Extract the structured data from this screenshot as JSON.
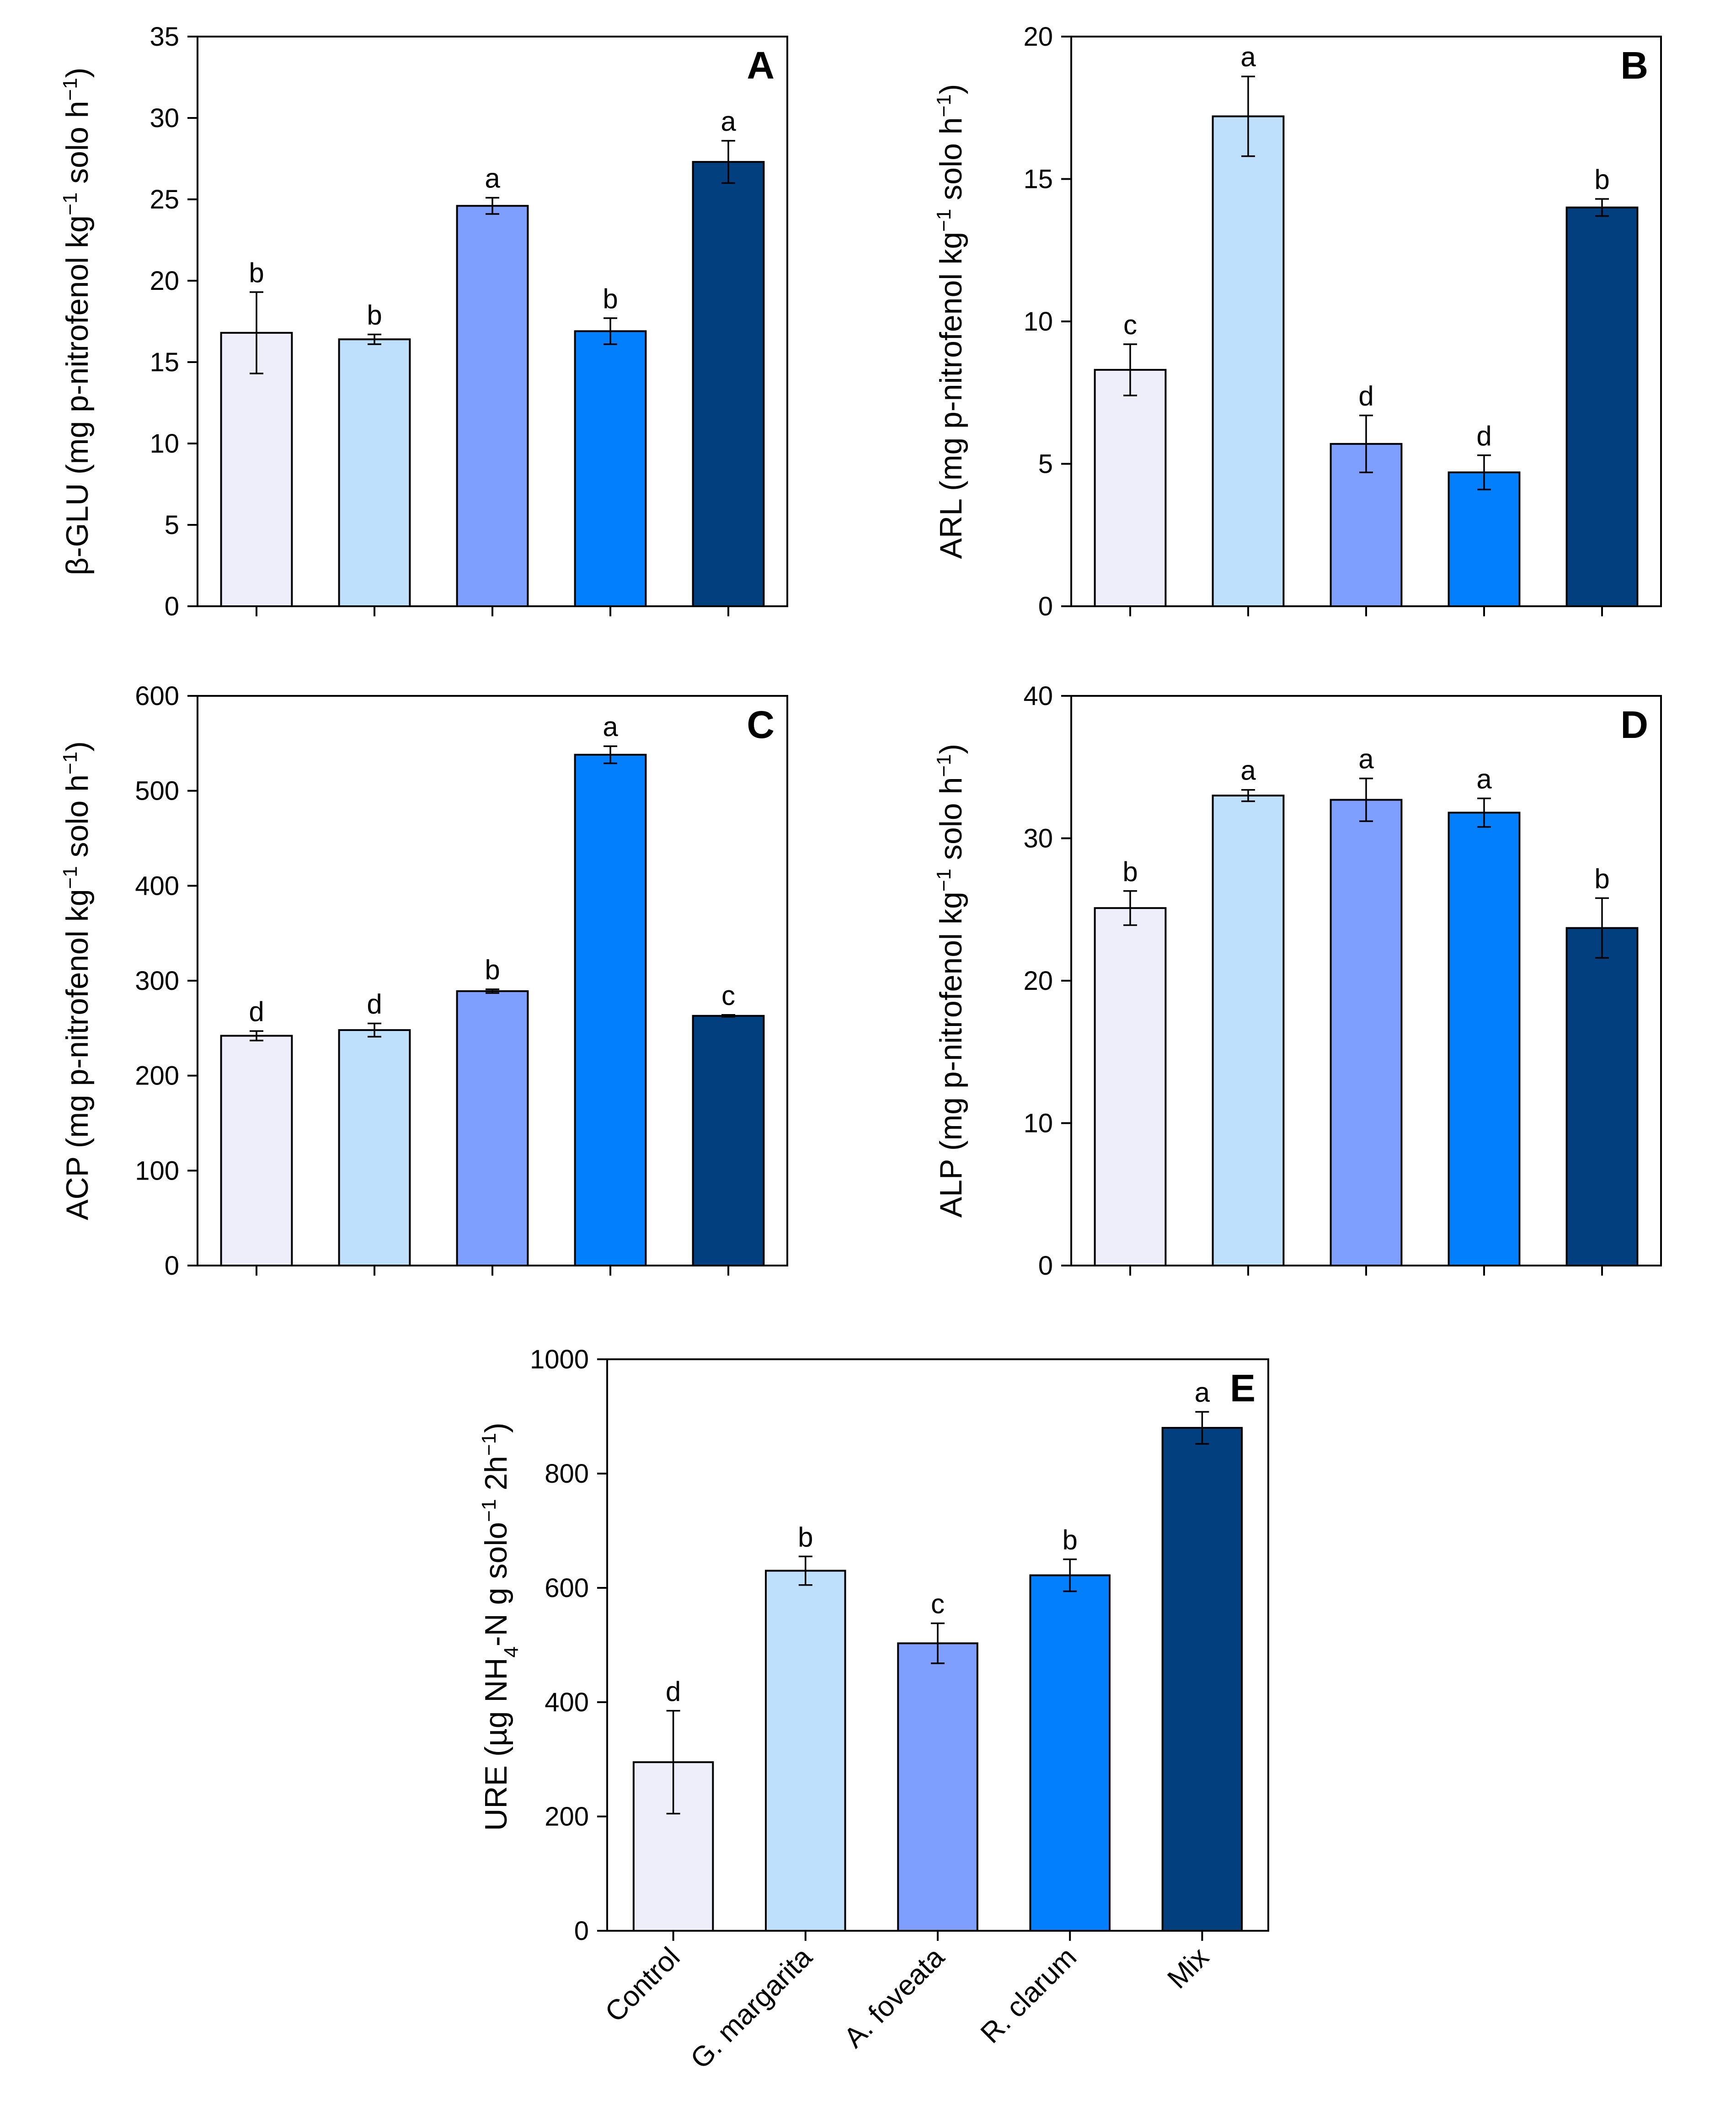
{
  "categories": [
    "Control",
    "G. margarita",
    "A. foveata",
    "R. clarum",
    "Mix"
  ],
  "colors": {
    "bars": [
      "#eeeefb",
      "#bfe0fd",
      "#7f9ffe",
      "#017ffd",
      "#013f7f"
    ],
    "stroke": "#000000",
    "background": "#ffffff"
  },
  "chart_data": [
    {
      "id": "A",
      "type": "bar",
      "panel_label": "A",
      "ylabel_prefix": "β-GLU (mg p-nitrofenol kg",
      "ylabel_sup1": "−1",
      "ylabel_mid": " solo h",
      "ylabel_sup2": "−1",
      "ylabel_suffix": ")",
      "ylim": [
        0,
        35
      ],
      "yticks": [
        0,
        5,
        10,
        15,
        20,
        25,
        30,
        35
      ],
      "categories": [
        "Control",
        "G. margarita",
        "A. foveata",
        "R. clarum",
        "Mix"
      ],
      "values": [
        16.8,
        16.4,
        24.6,
        16.9,
        27.3
      ],
      "errors": [
        2.5,
        0.3,
        0.5,
        0.8,
        1.3
      ],
      "letters": [
        "b",
        "b",
        "a",
        "b",
        "a"
      ]
    },
    {
      "id": "B",
      "type": "bar",
      "panel_label": "B",
      "ylabel_prefix": "ARL (mg p-nitrofenol kg",
      "ylabel_sup1": "−1",
      "ylabel_mid": " solo h",
      "ylabel_sup2": "−1",
      "ylabel_suffix": ")",
      "ylim": [
        0,
        20
      ],
      "yticks": [
        0,
        5,
        10,
        15,
        20
      ],
      "categories": [
        "Control",
        "G. margarita",
        "A. foveata",
        "R. clarum",
        "Mix"
      ],
      "values": [
        8.3,
        17.2,
        5.7,
        4.7,
        14.0
      ],
      "errors": [
        0.9,
        1.4,
        1.0,
        0.6,
        0.3
      ],
      "letters": [
        "c",
        "a",
        "d",
        "d",
        "b"
      ]
    },
    {
      "id": "C",
      "type": "bar",
      "panel_label": "C",
      "ylabel_prefix": "ACP (mg p-nitrofenol kg",
      "ylabel_sup1": "−1",
      "ylabel_mid": " solo h",
      "ylabel_sup2": "−1",
      "ylabel_suffix": ")",
      "ylim": [
        0,
        600
      ],
      "yticks": [
        0,
        100,
        200,
        300,
        400,
        500,
        600
      ],
      "categories": [
        "Control",
        "G. margarita",
        "A. foveata",
        "R. clarum",
        "Mix"
      ],
      "values": [
        242,
        248,
        289,
        538,
        263
      ],
      "errors": [
        5,
        7,
        2,
        9,
        1
      ],
      "letters": [
        "d",
        "d",
        "b",
        "a",
        "c"
      ]
    },
    {
      "id": "D",
      "type": "bar",
      "panel_label": "D",
      "ylabel_prefix": "ALP (mg p-nitrofenol kg",
      "ylabel_sup1": "−1",
      "ylabel_mid": " solo h",
      "ylabel_sup2": "−1",
      "ylabel_suffix": ")",
      "ylim": [
        0,
        40
      ],
      "yticks": [
        0,
        10,
        20,
        30,
        40
      ],
      "categories": [
        "Control",
        "G. margarita",
        "A. foveata",
        "R. clarum",
        "Mix"
      ],
      "values": [
        25.1,
        33.0,
        32.7,
        31.8,
        23.7
      ],
      "errors": [
        1.2,
        0.4,
        1.5,
        1.0,
        2.1
      ],
      "letters": [
        "b",
        "a",
        "a",
        "a",
        "b"
      ]
    },
    {
      "id": "E",
      "type": "bar",
      "panel_label": "E",
      "ylabel_prefix": "URE (µg NH",
      "ylabel_sub": "4",
      "ylabel_mid": "-N g solo",
      "ylabel_sup1": "−1",
      "ylabel_mid2": " 2h",
      "ylabel_sup2": "−1",
      "ylabel_suffix": ")",
      "ylim": [
        0,
        1000
      ],
      "yticks": [
        0,
        200,
        400,
        600,
        800,
        1000
      ],
      "categories": [
        "Control",
        "G. margarita",
        "A. foveata",
        "R. clarum",
        "Mix"
      ],
      "values": [
        295,
        630,
        503,
        622,
        880
      ],
      "errors": [
        90,
        25,
        35,
        28,
        28
      ],
      "letters": [
        "d",
        "b",
        "c",
        "b",
        "a"
      ]
    }
  ]
}
